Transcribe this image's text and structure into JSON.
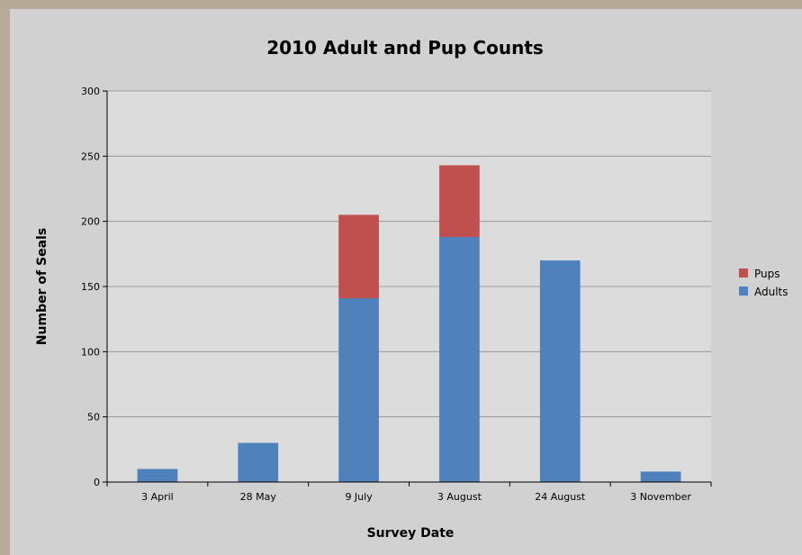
{
  "chart_data": {
    "type": "bar",
    "stacked": true,
    "title": "2010 Adult and Pup Counts",
    "xlabel": "Survey Date",
    "ylabel": "Number of Seals",
    "categories": [
      "3 April",
      "28 May",
      "9 July",
      "3 August",
      "24 August",
      "3 November"
    ],
    "ylim": [
      0,
      300
    ],
    "yticks": [
      0,
      50,
      100,
      150,
      200,
      250,
      300
    ],
    "grid": true,
    "legend_position": "right",
    "series": [
      {
        "name": "Adults",
        "color": "#4f81bd",
        "values": [
          10,
          30,
          141,
          188,
          170,
          8
        ]
      },
      {
        "name": "Pups",
        "color": "#c0504d",
        "values": [
          0,
          0,
          64,
          55,
          0,
          0
        ]
      }
    ],
    "legend_order": [
      "Pups",
      "Adults"
    ]
  }
}
